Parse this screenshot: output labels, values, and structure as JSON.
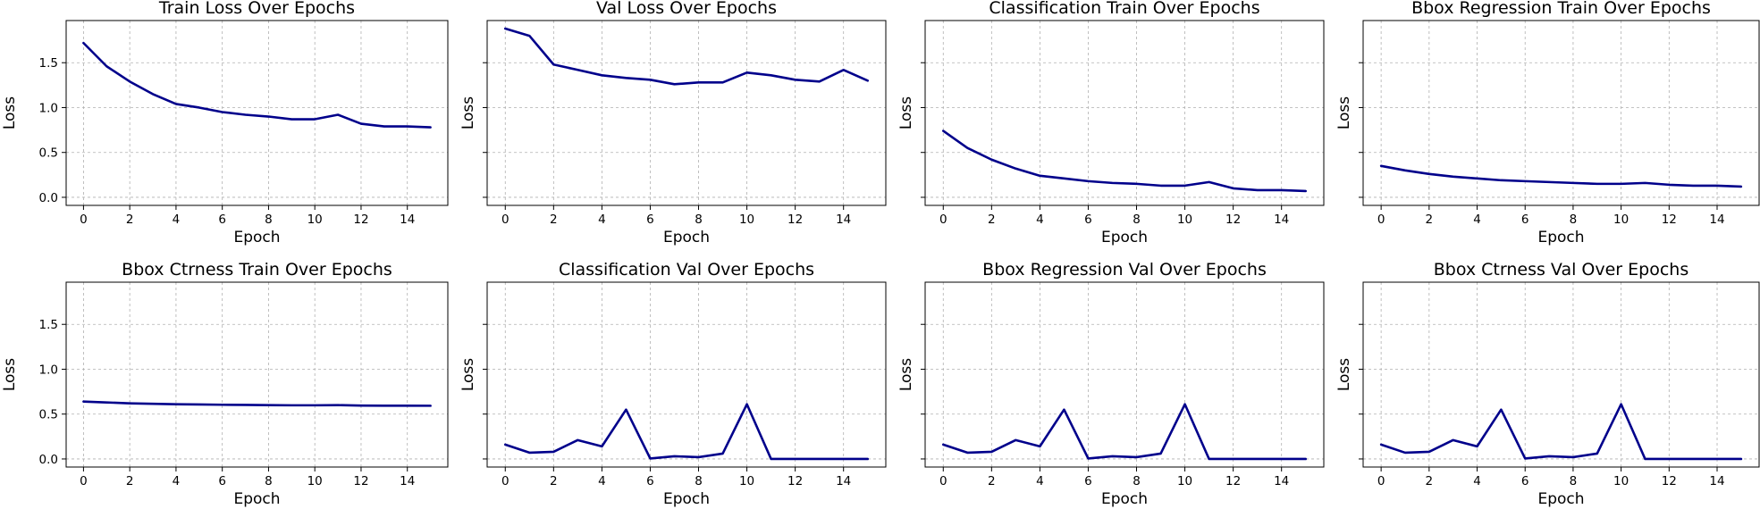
{
  "figure": {
    "background": "#ffffff",
    "line_color": "#00008b",
    "grid_color": "#b0b0b0"
  },
  "chart_data": [
    {
      "type": "line",
      "title": "Train Loss Over Epochs",
      "xlabel": "Epoch",
      "ylabel": "Loss",
      "xlim": [
        -0.75,
        15.75
      ],
      "ylim": [
        -0.09,
        1.97
      ],
      "xticks": [
        0,
        2,
        4,
        6,
        8,
        10,
        12,
        14
      ],
      "yticks": [
        0.0,
        0.5,
        1.0,
        1.5
      ],
      "ytick_labels": [
        "0.0",
        "0.5",
        "1.0",
        "1.5"
      ],
      "show_xtick_labels": true,
      "grid": true,
      "x": [
        0,
        1,
        2,
        3,
        4,
        5,
        6,
        7,
        8,
        9,
        10,
        11,
        12,
        13,
        14,
        15
      ],
      "series": [
        {
          "values": [
            1.72,
            1.46,
            1.29,
            1.15,
            1.04,
            1.0,
            0.95,
            0.92,
            0.9,
            0.87,
            0.87,
            0.92,
            0.82,
            0.79,
            0.79,
            0.78
          ]
        }
      ]
    },
    {
      "type": "line",
      "title": "Val Loss Over Epochs",
      "xlabel": "Epoch",
      "ylabel": "Loss",
      "xlim": [
        -0.75,
        15.75
      ],
      "ylim": [
        -0.09,
        1.97
      ],
      "xticks": [
        0,
        2,
        4,
        6,
        8,
        10,
        12,
        14
      ],
      "yticks": [
        0.0,
        0.5,
        1.0,
        1.5
      ],
      "ytick_labels": [
        "",
        "",
        "",
        ""
      ],
      "show_xtick_labels": true,
      "grid": true,
      "x": [
        0,
        1,
        2,
        3,
        4,
        5,
        6,
        7,
        8,
        9,
        10,
        11,
        12,
        13,
        14,
        15
      ],
      "series": [
        {
          "values": [
            1.88,
            1.8,
            1.48,
            1.42,
            1.36,
            1.33,
            1.31,
            1.26,
            1.28,
            1.28,
            1.39,
            1.36,
            1.31,
            1.29,
            1.42,
            1.3
          ]
        }
      ]
    },
    {
      "type": "line",
      "title": "Classification Train Over Epochs",
      "xlabel": "Epoch",
      "ylabel": "Loss",
      "xlim": [
        -0.75,
        15.75
      ],
      "ylim": [
        -0.09,
        1.97
      ],
      "xticks": [
        0,
        2,
        4,
        6,
        8,
        10,
        12,
        14
      ],
      "yticks": [
        0.0,
        0.5,
        1.0,
        1.5
      ],
      "ytick_labels": [
        "",
        "",
        "",
        ""
      ],
      "show_xtick_labels": true,
      "grid": true,
      "x": [
        0,
        1,
        2,
        3,
        4,
        5,
        6,
        7,
        8,
        9,
        10,
        11,
        12,
        13,
        14,
        15
      ],
      "series": [
        {
          "values": [
            0.74,
            0.55,
            0.42,
            0.32,
            0.24,
            0.21,
            0.18,
            0.16,
            0.15,
            0.13,
            0.13,
            0.17,
            0.1,
            0.08,
            0.08,
            0.07
          ]
        }
      ]
    },
    {
      "type": "line",
      "title": "Bbox Regression Train Over Epochs",
      "xlabel": "Epoch",
      "ylabel": "Loss",
      "xlim": [
        -0.75,
        15.75
      ],
      "ylim": [
        -0.09,
        1.97
      ],
      "xticks": [
        0,
        2,
        4,
        6,
        8,
        10,
        12,
        14
      ],
      "yticks": [
        0.0,
        0.5,
        1.0,
        1.5
      ],
      "ytick_labels": [
        "",
        "",
        "",
        ""
      ],
      "show_xtick_labels": true,
      "grid": true,
      "x": [
        0,
        1,
        2,
        3,
        4,
        5,
        6,
        7,
        8,
        9,
        10,
        11,
        12,
        13,
        14,
        15
      ],
      "series": [
        {
          "values": [
            0.35,
            0.3,
            0.26,
            0.23,
            0.21,
            0.19,
            0.18,
            0.17,
            0.16,
            0.15,
            0.15,
            0.16,
            0.14,
            0.13,
            0.13,
            0.12
          ]
        }
      ]
    },
    {
      "type": "line",
      "title": "Bbox Ctrness Train Over Epochs",
      "xlabel": "Epoch",
      "ylabel": "Loss",
      "xlim": [
        -0.75,
        15.75
      ],
      "ylim": [
        -0.09,
        1.97
      ],
      "xticks": [
        0,
        2,
        4,
        6,
        8,
        10,
        12,
        14
      ],
      "yticks": [
        0.0,
        0.5,
        1.0,
        1.5
      ],
      "ytick_labels": [
        "0.0",
        "0.5",
        "1.0",
        "1.5"
      ],
      "show_xtick_labels": true,
      "grid": true,
      "x": [
        0,
        1,
        2,
        3,
        4,
        5,
        6,
        7,
        8,
        9,
        10,
        11,
        12,
        13,
        14,
        15
      ],
      "series": [
        {
          "values": [
            0.64,
            0.63,
            0.62,
            0.615,
            0.61,
            0.607,
            0.604,
            0.602,
            0.6,
            0.598,
            0.598,
            0.6,
            0.595,
            0.594,
            0.594,
            0.593
          ]
        }
      ]
    },
    {
      "type": "line",
      "title": "Classification Val Over Epochs",
      "xlabel": "Epoch",
      "ylabel": "Loss",
      "xlim": [
        -0.75,
        15.75
      ],
      "ylim": [
        -0.09,
        1.97
      ],
      "xticks": [
        0,
        2,
        4,
        6,
        8,
        10,
        12,
        14
      ],
      "yticks": [
        0.0,
        0.5,
        1.0,
        1.5
      ],
      "ytick_labels": [
        "",
        "",
        "",
        ""
      ],
      "show_xtick_labels": true,
      "grid": true,
      "x": [
        0,
        1,
        2,
        3,
        4,
        5,
        6,
        7,
        8,
        9,
        10,
        11,
        12,
        13,
        14,
        15
      ],
      "series": [
        {
          "values": [
            0.16,
            0.07,
            0.08,
            0.21,
            0.14,
            0.55,
            0.005,
            0.03,
            0.02,
            0.06,
            0.61,
            0.0,
            0.0,
            0.0,
            0.0,
            0.0
          ]
        }
      ]
    },
    {
      "type": "line",
      "title": "Bbox Regression Val Over Epochs",
      "xlabel": "Epoch",
      "ylabel": "Loss",
      "xlim": [
        -0.75,
        15.75
      ],
      "ylim": [
        -0.09,
        1.97
      ],
      "xticks": [
        0,
        2,
        4,
        6,
        8,
        10,
        12,
        14
      ],
      "yticks": [
        0.0,
        0.5,
        1.0,
        1.5
      ],
      "ytick_labels": [
        "",
        "",
        "",
        ""
      ],
      "show_xtick_labels": true,
      "grid": true,
      "x": [
        0,
        1,
        2,
        3,
        4,
        5,
        6,
        7,
        8,
        9,
        10,
        11,
        12,
        13,
        14,
        15
      ],
      "series": [
        {
          "values": [
            0.16,
            0.07,
            0.08,
            0.21,
            0.14,
            0.55,
            0.005,
            0.03,
            0.02,
            0.06,
            0.61,
            0.0,
            0.0,
            0.0,
            0.0,
            0.0
          ]
        }
      ]
    },
    {
      "type": "line",
      "title": "Bbox Ctrness Val Over Epochs",
      "xlabel": "Epoch",
      "ylabel": "Loss",
      "xlim": [
        -0.75,
        15.75
      ],
      "ylim": [
        -0.09,
        1.97
      ],
      "xticks": [
        0,
        2,
        4,
        6,
        8,
        10,
        12,
        14
      ],
      "yticks": [
        0.0,
        0.5,
        1.0,
        1.5
      ],
      "ytick_labels": [
        "",
        "",
        "",
        ""
      ],
      "show_xtick_labels": true,
      "grid": true,
      "x": [
        0,
        1,
        2,
        3,
        4,
        5,
        6,
        7,
        8,
        9,
        10,
        11,
        12,
        13,
        14,
        15
      ],
      "series": [
        {
          "values": [
            0.16,
            0.07,
            0.08,
            0.21,
            0.14,
            0.55,
            0.005,
            0.03,
            0.02,
            0.06,
            0.61,
            0.0,
            0.0,
            0.0,
            0.0,
            0.0
          ]
        }
      ]
    }
  ]
}
